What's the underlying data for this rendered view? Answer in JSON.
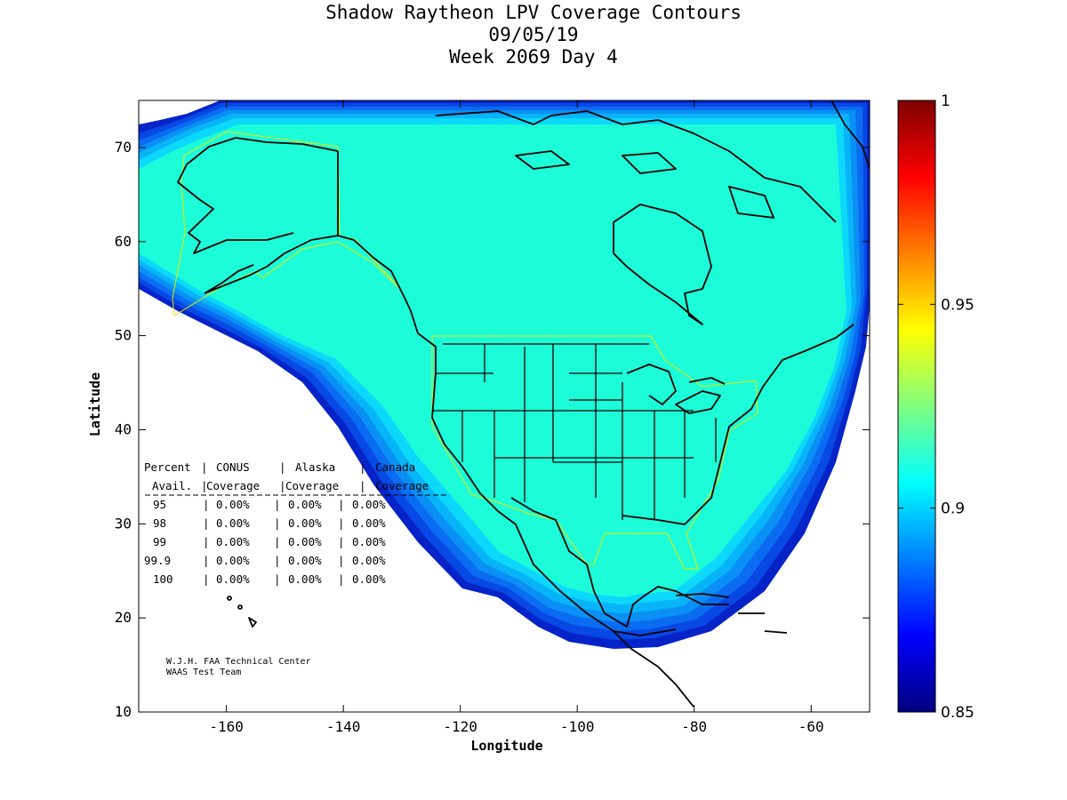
{
  "title": {
    "line1": "Shadow Raytheon LPV Coverage Contours",
    "line2": "09/05/19",
    "line3": "Week 2069 Day 4"
  },
  "chart_data": {
    "type": "heatmap",
    "title": "Shadow Raytheon LPV Coverage Contours",
    "xlabel": "Longitude",
    "ylabel": "Latitude",
    "xlim": [
      -175,
      -50
    ],
    "ylim": [
      10,
      75
    ],
    "x_ticks": [
      -160,
      -140,
      -120,
      -100,
      -80,
      -60
    ],
    "y_ticks": [
      10,
      20,
      30,
      40,
      50,
      60,
      70
    ],
    "colorbar": {
      "min": 0.85,
      "max": 1,
      "ticks": [
        0.85,
        0.9,
        0.95,
        1
      ],
      "colormap": "jet"
    },
    "table": {
      "header1": [
        "Percent",
        "CONUS",
        "Alaska",
        "Canada"
      ],
      "header2": [
        "Avail.",
        "Coverage",
        "Coverage",
        "Coverage"
      ],
      "rows": [
        [
          "95",
          "0.00%",
          "0.00%",
          "0.00%"
        ],
        [
          "98",
          "0.00%",
          "0.00%",
          "0.00%"
        ],
        [
          "99",
          "0.00%",
          "0.00%",
          "0.00%"
        ],
        [
          "99.9",
          "0.00%",
          "0.00%",
          "0.00%"
        ],
        [
          "100",
          "0.00%",
          "0.00%",
          "0.00%"
        ]
      ]
    },
    "credit": [
      "W.J.H. FAA Technical Center",
      "WAAS Test Team"
    ]
  },
  "colors": {
    "coverage_main": "#1cfcd8",
    "coverage_edge": [
      "#0cd8fc",
      "#08b4f8",
      "#0a90f4",
      "#0a6cf0",
      "#0848e4",
      "#0424c8"
    ],
    "coastline": "#000000",
    "service_boundary": "#e8e800"
  }
}
